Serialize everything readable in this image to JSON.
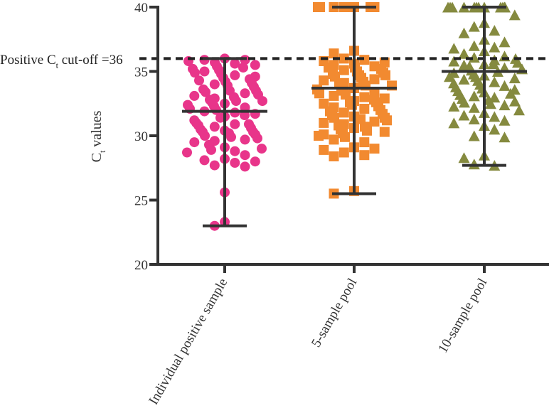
{
  "chart_data": {
    "type": "scatter",
    "title": "",
    "xlabel": "",
    "ylabel": {
      "main": "C",
      "sub": "t",
      "rest": " values"
    },
    "ylim": [
      20,
      40
    ],
    "yticks": [
      20,
      25,
      30,
      35,
      40
    ],
    "categories": [
      "Individual positive sample",
      "5-sample pool",
      "10-sample pool"
    ],
    "cutoff": {
      "value": 36,
      "label_main": "Positive C",
      "label_sub": "t",
      "label_rest": " cut-off =36"
    },
    "colors": {
      "individual": "#e8358a",
      "pool5": "#f28a30",
      "pool10": "#858a3f",
      "axis": "#333333"
    },
    "series": [
      {
        "name": "Individual positive sample",
        "marker": "circle",
        "mean": 31.9,
        "range": [
          23.0,
          36.0
        ],
        "values": [
          36.0,
          35.9,
          35.8,
          35.9,
          35.5,
          35.6,
          35.4,
          35.3,
          35.2,
          35.1,
          35.0,
          34.9,
          34.8,
          34.7,
          34.6,
          34.5,
          34.4,
          34.3,
          34.2,
          34.0,
          33.9,
          33.8,
          33.6,
          33.5,
          33.4,
          33.3,
          33.2,
          33.1,
          33.0,
          32.9,
          32.8,
          32.7,
          32.6,
          32.5,
          32.4,
          32.3,
          32.2,
          32.1,
          32.0,
          31.9,
          31.8,
          31.7,
          31.5,
          31.4,
          31.2,
          31.0,
          30.9,
          30.8,
          30.7,
          30.6,
          30.5,
          30.4,
          30.3,
          30.2,
          30.1,
          30.0,
          29.9,
          29.8,
          29.7,
          29.6,
          29.5,
          29.3,
          29.0,
          28.9,
          28.8,
          28.7,
          28.5,
          28.2,
          28.1,
          28.0,
          27.9,
          27.7,
          27.6,
          25.6,
          23.3,
          23.0,
          33.5,
          34.1,
          31.6,
          30.3,
          32.7,
          29.1,
          35.7,
          30.9
        ]
      },
      {
        "name": "5-sample pool",
        "marker": "square",
        "mean": 33.7,
        "range": [
          25.5,
          40.0
        ],
        "values": [
          40.0,
          40.0,
          40.0,
          40.0,
          40.0,
          40.0,
          40.0,
          40.0,
          40.0,
          36.6,
          36.4,
          36.0,
          35.9,
          35.8,
          35.7,
          35.6,
          35.5,
          35.4,
          35.3,
          35.2,
          35.1,
          35.0,
          34.9,
          34.8,
          34.7,
          34.6,
          34.5,
          34.4,
          34.3,
          34.2,
          34.1,
          34.0,
          33.9,
          33.8,
          33.7,
          33.6,
          33.5,
          33.4,
          33.3,
          33.2,
          33.1,
          33.0,
          32.9,
          32.8,
          32.7,
          32.6,
          32.5,
          32.4,
          32.3,
          32.2,
          32.1,
          32.0,
          31.9,
          31.8,
          31.7,
          31.6,
          31.5,
          31.4,
          31.3,
          31.2,
          31.1,
          31.0,
          30.9,
          30.8,
          30.6,
          30.5,
          30.4,
          30.3,
          30.2,
          30.1,
          30.0,
          29.9,
          29.7,
          29.5,
          29.1,
          29.0,
          28.9,
          28.7,
          28.5,
          28.4,
          25.7,
          25.5,
          35.3,
          33.9,
          32.6,
          31.4,
          34.7,
          30.7
        ]
      },
      {
        "name": "10-sample pool",
        "marker": "triangle",
        "mean": 35.0,
        "range": [
          27.7,
          40.0
        ],
        "values": [
          40.0,
          40.0,
          40.0,
          40.0,
          40.0,
          40.0,
          40.0,
          40.0,
          40.0,
          40.0,
          40.0,
          40.0,
          39.4,
          38.8,
          38.5,
          38.2,
          38.0,
          37.5,
          37.3,
          37.0,
          36.8,
          36.6,
          36.4,
          36.2,
          36.1,
          36.0,
          35.9,
          35.8,
          35.7,
          35.6,
          35.5,
          35.4,
          35.3,
          35.2,
          35.1,
          35.0,
          34.9,
          34.8,
          34.7,
          34.6,
          34.5,
          34.4,
          34.3,
          34.2,
          34.1,
          34.0,
          33.9,
          33.8,
          33.6,
          33.5,
          33.4,
          33.3,
          33.2,
          33.1,
          33.0,
          32.9,
          32.8,
          32.7,
          32.6,
          32.5,
          32.3,
          32.2,
          32.0,
          31.8,
          31.6,
          31.5,
          31.3,
          31.2,
          31.0,
          30.8,
          30.5,
          30.0,
          29.9,
          28.5,
          28.3,
          27.8,
          27.7,
          36.9,
          34.6,
          33.7,
          32.4,
          35.6
        ]
      }
    ]
  }
}
